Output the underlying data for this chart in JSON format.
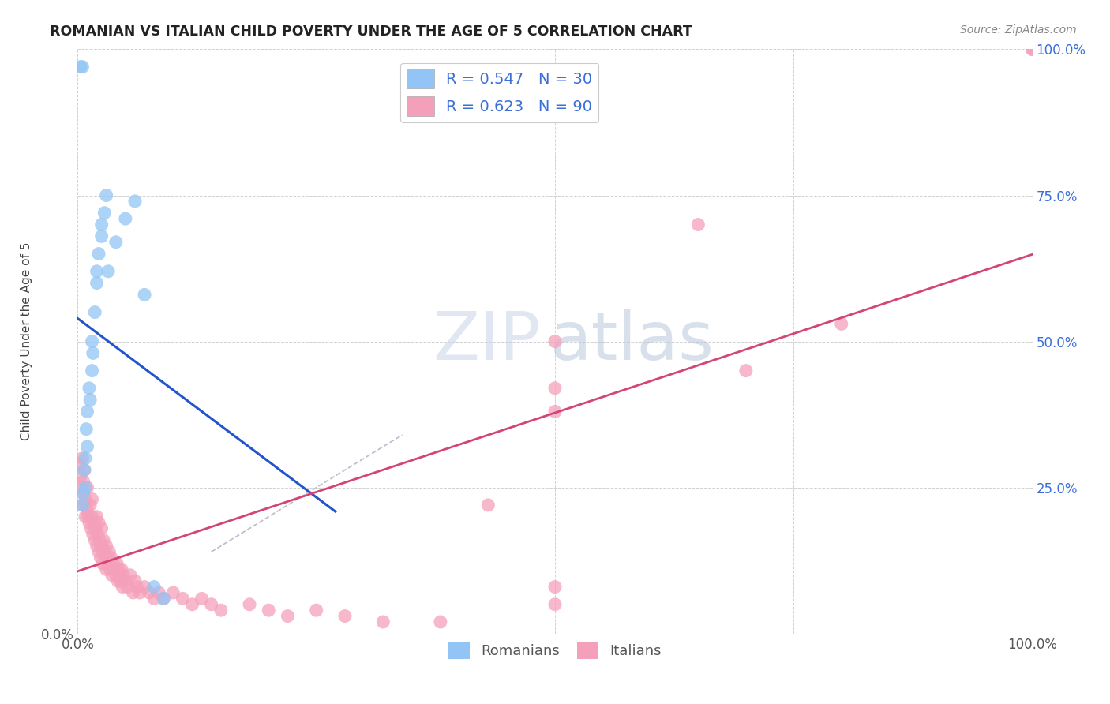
{
  "title": "ROMANIAN VS ITALIAN CHILD POVERTY UNDER THE AGE OF 5 CORRELATION CHART",
  "source": "Source: ZipAtlas.com",
  "ylabel": "Child Poverty Under the Age of 5",
  "xlim": [
    0.0,
    1.0
  ],
  "ylim": [
    0.0,
    1.0
  ],
  "right_yticks": [
    0.0,
    0.25,
    0.5,
    0.75,
    1.0
  ],
  "right_yticklabels": [
    "",
    "25.0%",
    "50.0%",
    "75.0%",
    "100.0%"
  ],
  "romanian_color": "#92c5f5",
  "italian_color": "#f5a0bb",
  "regression_blue": "#2255cc",
  "regression_pink": "#d44475",
  "diag_color": "#bbbbcc",
  "legend_R_blue": "R = 0.547",
  "legend_N_blue": "N = 30",
  "legend_R_pink": "R = 0.623",
  "legend_N_pink": "N = 90",
  "label_romanians": "Romanians",
  "label_italians": "Italians",
  "background_color": "#ffffff",
  "rom_x": [
    0.003,
    0.005,
    0.005,
    0.006,
    0.007,
    0.008,
    0.008,
    0.009,
    0.01,
    0.01,
    0.012,
    0.013,
    0.015,
    0.015,
    0.016,
    0.018,
    0.02,
    0.02,
    0.022,
    0.025,
    0.025,
    0.028,
    0.03,
    0.032,
    0.04,
    0.05,
    0.06,
    0.07,
    0.08,
    0.09
  ],
  "rom_y": [
    0.97,
    0.97,
    0.22,
    0.24,
    0.28,
    0.25,
    0.3,
    0.35,
    0.32,
    0.38,
    0.42,
    0.4,
    0.45,
    0.5,
    0.48,
    0.55,
    0.6,
    0.62,
    0.65,
    0.68,
    0.7,
    0.72,
    0.75,
    0.62,
    0.67,
    0.71,
    0.74,
    0.58,
    0.08,
    0.06
  ],
  "ita_x": [
    0.002,
    0.003,
    0.004,
    0.005,
    0.005,
    0.006,
    0.006,
    0.007,
    0.008,
    0.008,
    0.009,
    0.01,
    0.01,
    0.011,
    0.012,
    0.013,
    0.014,
    0.015,
    0.015,
    0.016,
    0.017,
    0.018,
    0.019,
    0.02,
    0.02,
    0.021,
    0.022,
    0.022,
    0.023,
    0.024,
    0.025,
    0.025,
    0.026,
    0.027,
    0.028,
    0.03,
    0.03,
    0.031,
    0.032,
    0.033,
    0.034,
    0.035,
    0.036,
    0.037,
    0.038,
    0.04,
    0.041,
    0.042,
    0.043,
    0.044,
    0.045,
    0.046,
    0.047,
    0.048,
    0.05,
    0.052,
    0.055,
    0.058,
    0.06,
    0.062,
    0.065,
    0.07,
    0.075,
    0.08,
    0.085,
    0.09,
    0.1,
    0.11,
    0.12,
    0.13,
    0.14,
    0.15,
    0.18,
    0.2,
    0.22,
    0.25,
    0.28,
    0.32,
    0.38,
    0.43,
    0.5,
    0.5,
    0.5,
    0.5,
    0.5,
    0.65,
    0.7,
    0.8,
    1.0,
    1.0
  ],
  "ita_y": [
    0.29,
    0.27,
    0.25,
    0.3,
    0.22,
    0.26,
    0.24,
    0.28,
    0.23,
    0.2,
    0.22,
    0.21,
    0.25,
    0.2,
    0.19,
    0.22,
    0.18,
    0.2,
    0.23,
    0.17,
    0.19,
    0.16,
    0.18,
    0.15,
    0.2,
    0.17,
    0.14,
    0.19,
    0.16,
    0.13,
    0.15,
    0.18,
    0.12,
    0.16,
    0.14,
    0.11,
    0.15,
    0.13,
    0.12,
    0.14,
    0.11,
    0.13,
    0.1,
    0.12,
    0.11,
    0.1,
    0.12,
    0.09,
    0.11,
    0.1,
    0.09,
    0.11,
    0.08,
    0.1,
    0.09,
    0.08,
    0.1,
    0.07,
    0.09,
    0.08,
    0.07,
    0.08,
    0.07,
    0.06,
    0.07,
    0.06,
    0.07,
    0.06,
    0.05,
    0.06,
    0.05,
    0.04,
    0.05,
    0.04,
    0.03,
    0.04,
    0.03,
    0.02,
    0.02,
    0.22,
    0.5,
    0.42,
    0.38,
    0.08,
    0.05,
    0.7,
    0.45,
    0.53,
    1.0,
    1.0
  ]
}
